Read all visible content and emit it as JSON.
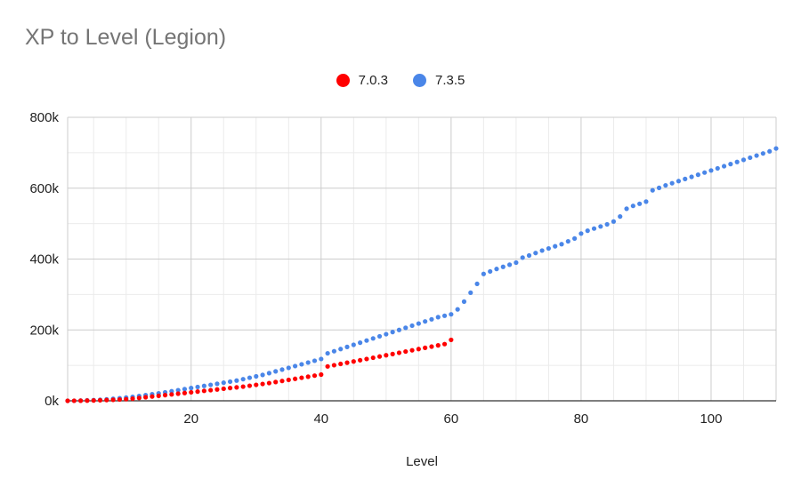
{
  "chart_data": {
    "type": "scatter",
    "title": "XP to Level (Legion)",
    "xlabel": "Level",
    "ylabel": "",
    "xlim": [
      1,
      110
    ],
    "ylim": [
      0,
      800000
    ],
    "x_ticks": [
      20,
      40,
      60,
      80,
      100
    ],
    "x_tick_labels": [
      "20",
      "40",
      "60",
      "80",
      "100"
    ],
    "y_ticks": [
      0,
      200000,
      400000,
      600000,
      800000
    ],
    "y_tick_labels": [
      "0k",
      "200k",
      "400k",
      "600k",
      "800k"
    ],
    "grid": true,
    "legend_position": "top",
    "series": [
      {
        "name": "7.0.3",
        "color": "#ff0000",
        "x": [
          1,
          2,
          3,
          4,
          5,
          6,
          7,
          8,
          9,
          10,
          11,
          12,
          13,
          14,
          15,
          16,
          17,
          18,
          19,
          20,
          21,
          22,
          23,
          24,
          25,
          26,
          27,
          28,
          29,
          30,
          31,
          32,
          33,
          34,
          35,
          36,
          37,
          38,
          39,
          40,
          41,
          42,
          43,
          44,
          45,
          46,
          47,
          48,
          49,
          50,
          51,
          52,
          53,
          54,
          55,
          56,
          57,
          58,
          59,
          60
        ],
        "y": [
          0,
          100,
          300,
          600,
          1000,
          1500,
          2100,
          2800,
          3600,
          4500,
          6000,
          8000,
          10000,
          12000,
          14000,
          16000,
          18000,
          20000,
          22000,
          24000,
          26000,
          28000,
          30000,
          32000,
          34000,
          36000,
          38000,
          40000,
          42500,
          45000,
          47500,
          50000,
          53000,
          56000,
          59000,
          62000,
          65000,
          68000,
          71000,
          74000,
          97000,
          100500,
          104000,
          107500,
          111000,
          114500,
          118000,
          121500,
          125000,
          128500,
          132000,
          135500,
          139000,
          142500,
          146000,
          149500,
          153000,
          156500,
          160000,
          172000
        ]
      },
      {
        "name": "7.3.5",
        "color": "#4a86e8",
        "x": [
          1,
          2,
          3,
          4,
          5,
          6,
          7,
          8,
          9,
          10,
          11,
          12,
          13,
          14,
          15,
          16,
          17,
          18,
          19,
          20,
          21,
          22,
          23,
          24,
          25,
          26,
          27,
          28,
          29,
          30,
          31,
          32,
          33,
          34,
          35,
          36,
          37,
          38,
          39,
          40,
          41,
          42,
          43,
          44,
          45,
          46,
          47,
          48,
          49,
          50,
          51,
          52,
          53,
          54,
          55,
          56,
          57,
          58,
          59,
          60,
          61,
          62,
          63,
          64,
          65,
          66,
          67,
          68,
          69,
          70,
          71,
          72,
          73,
          74,
          75,
          76,
          77,
          78,
          79,
          80,
          81,
          82,
          83,
          84,
          85,
          86,
          87,
          88,
          89,
          90,
          91,
          92,
          93,
          94,
          95,
          96,
          97,
          98,
          99,
          100,
          101,
          102,
          103,
          104,
          105,
          106,
          107,
          108,
          109,
          110
        ],
        "y": [
          0,
          200,
          600,
          1200,
          2000,
          3000,
          4200,
          5600,
          7200,
          9000,
          11000,
          13500,
          16000,
          18500,
          21000,
          24000,
          27000,
          30000,
          33000,
          36000,
          39000,
          42000,
          45000,
          48000,
          51000,
          54000,
          57000,
          61000,
          65000,
          69000,
          73000,
          78000,
          83000,
          88000,
          93000,
          98000,
          103000,
          108000,
          113000,
          118000,
          134000,
          140000,
          146000,
          152000,
          158000,
          164000,
          170000,
          176000,
          182000,
          188000,
          194000,
          200000,
          206000,
          212000,
          218000,
          224000,
          230000,
          236000,
          240000,
          244000,
          258000,
          280000,
          305000,
          330000,
          358000,
          365000,
          372000,
          378000,
          384000,
          390000,
          404000,
          410000,
          417000,
          424000,
          430000,
          436000,
          442000,
          450000,
          458000,
          472000,
          480000,
          486000,
          492000,
          498000,
          506000,
          520000,
          542000,
          550000,
          556000,
          562000,
          594000,
          601000,
          608000,
          614000,
          620000,
          626000,
          632000,
          638000,
          644000,
          650000,
          656000,
          662000,
          668000,
          674000,
          680000,
          686000,
          692000,
          698000,
          704000,
          712000
        ]
      }
    ]
  }
}
